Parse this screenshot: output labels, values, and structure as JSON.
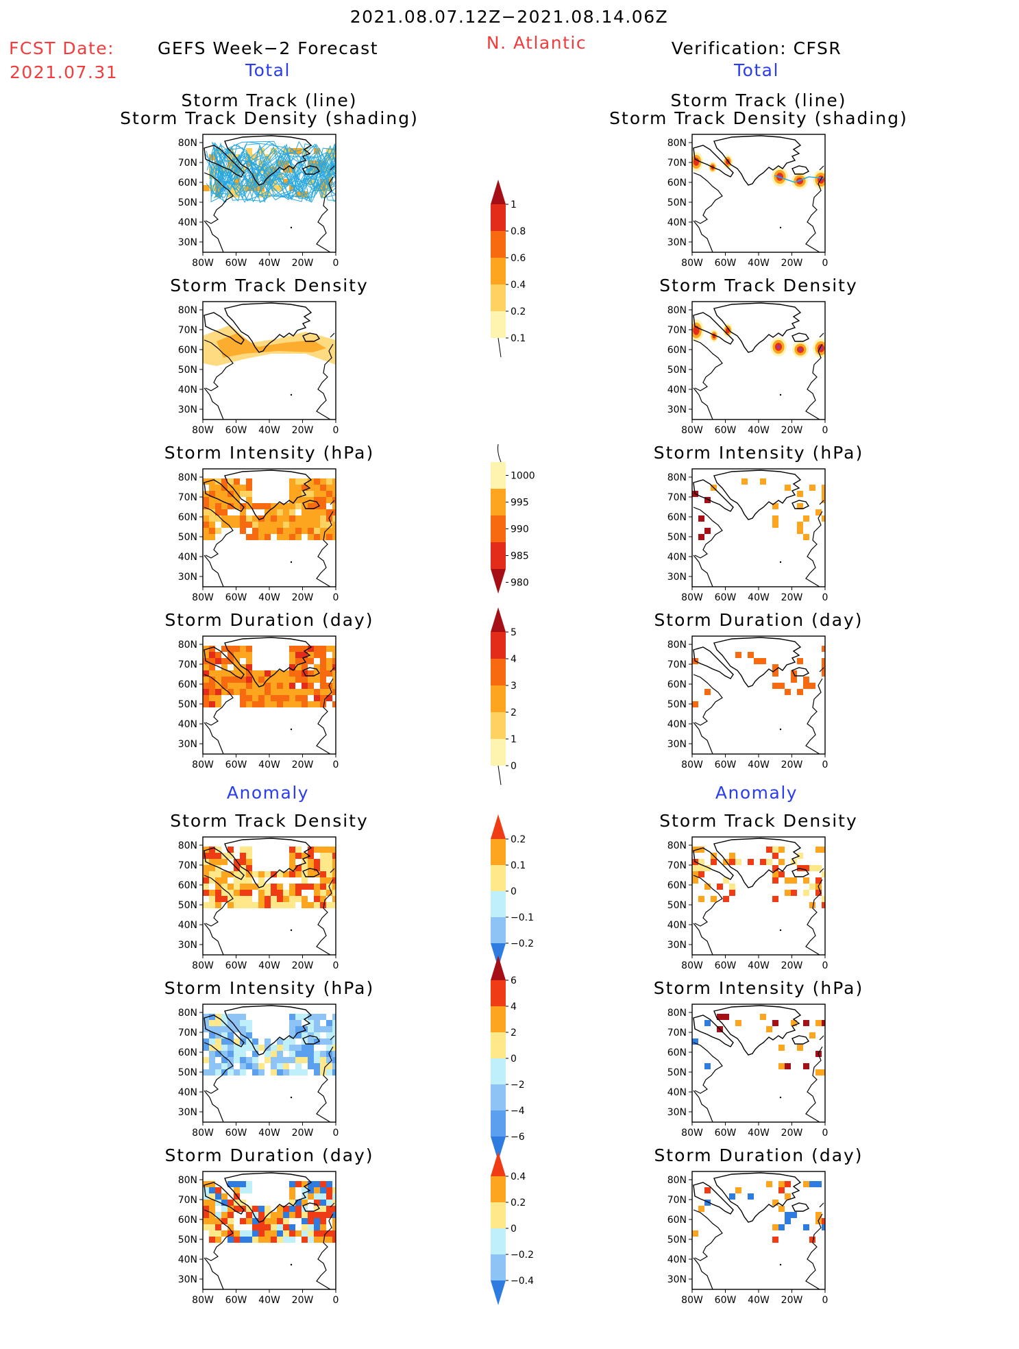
{
  "header": {
    "date_range": "2021.08.07.12Z−2021.08.14.06Z",
    "region": "N. Atlantic",
    "fcst_label": "FCST Date:",
    "fcst_date": "2021.07.31",
    "left_title": "GEFS Week−2 Forecast",
    "right_title": "Verification: CFSR",
    "total_left": "Total",
    "total_right": "Total",
    "anomaly_left": "Anomaly",
    "anomaly_right": "Anomaly"
  },
  "colors": {
    "title_red": "#f03c3c",
    "title_blue": "#2a3cf0",
    "track_line": "#29a8e0"
  },
  "panels": [
    {
      "id": "track",
      "title1": "Storm Track (line)",
      "title2": "Storm Track Density (shading)"
    },
    {
      "id": "density",
      "title1": "Storm Track Density"
    },
    {
      "id": "intensity",
      "title1": "Storm Intensity (hPa)"
    },
    {
      "id": "duration",
      "title1": "Storm Duration (day)"
    },
    {
      "id": "anom_density",
      "title1": "Storm Track Density"
    },
    {
      "id": "anom_intensity",
      "title1": "Storm Intensity (hPa)"
    },
    {
      "id": "anom_duration",
      "title1": "Storm Duration (day)"
    }
  ],
  "axes": {
    "lat_labels": [
      "80N",
      "70N",
      "60N",
      "50N",
      "40N",
      "30N"
    ],
    "lon_labels": [
      "80W",
      "60W",
      "40W",
      "20W",
      "0"
    ]
  },
  "colorbars": [
    {
      "id": "density",
      "labels": [
        "1",
        "0.8",
        "0.6",
        "0.4",
        "0.2",
        "0.1"
      ],
      "colors": [
        "#a50f15",
        "#e32d1a",
        "#f86a10",
        "#fda51e",
        "#fed260",
        "#fff3b0"
      ],
      "arrow_top": true,
      "arrow_bottom": false
    },
    {
      "id": "intensity",
      "labels": [
        "1000",
        "995",
        "990",
        "985",
        "980"
      ],
      "colors": [
        "#fff3b0",
        "#fda51e",
        "#f86a10",
        "#e32d1a",
        "#a50f15"
      ],
      "arrow_top": false,
      "arrow_bottom": true
    },
    {
      "id": "duration",
      "labels": [
        "5",
        "4",
        "3",
        "2",
        "1",
        "0"
      ],
      "colors": [
        "#a50f15",
        "#e32d1a",
        "#f86a10",
        "#fda51e",
        "#fed260",
        "#fff3b0"
      ],
      "arrow_top": true,
      "arrow_bottom": false
    },
    {
      "id": "anom_density",
      "labels": [
        "0.2",
        "0.1",
        "0",
        "−0.1",
        "−0.2"
      ],
      "colors": [
        "#f03c14",
        "#fda51e",
        "#ffe88a",
        "#bff0fa",
        "#8ec4f5",
        "#2e7ce0"
      ],
      "arrow_top": true,
      "arrow_bottom": true
    },
    {
      "id": "anom_intensity",
      "labels": [
        "6",
        "4",
        "2",
        "0",
        "−2",
        "−4",
        "−6"
      ],
      "colors": [
        "#a50f15",
        "#f03c14",
        "#fda51e",
        "#ffe88a",
        "#bff0fa",
        "#8ec4f5",
        "#5aa0ee",
        "#2e7ce0"
      ],
      "arrow_top": true,
      "arrow_bottom": true
    },
    {
      "id": "anom_duration",
      "labels": [
        "0.4",
        "0.2",
        "0",
        "−0.2",
        "−0.4"
      ],
      "colors": [
        "#f03c14",
        "#fda51e",
        "#ffe88a",
        "#bff0fa",
        "#8ec4f5",
        "#2e7ce0"
      ],
      "arrow_top": true,
      "arrow_bottom": true
    }
  ]
}
